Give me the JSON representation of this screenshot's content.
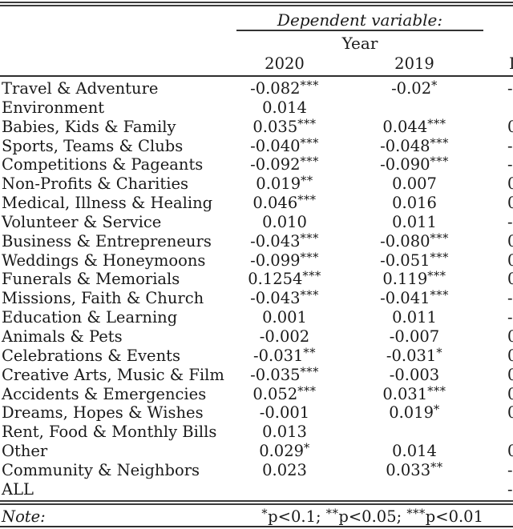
{
  "table": {
    "dependent_variable_label": "Dependent variable:",
    "group_header": "Year",
    "columns": [
      "2020",
      "2019"
    ],
    "clipped_column_header_partial": "I",
    "rows": [
      {
        "label": "Travel & Adventure",
        "y2020": "-0.082***",
        "y2019": "-0.02*",
        "clipped": "-"
      },
      {
        "label": "Environment",
        "y2020": "0.014",
        "y2019": "",
        "clipped": ""
      },
      {
        "label": "Babies, Kids & Family",
        "y2020": "0.035***",
        "y2019": "0.044***",
        "clipped": "0"
      },
      {
        "label": "Sports, Teams & Clubs",
        "y2020": "-0.040***",
        "y2019": "-0.048***",
        "clipped": "-"
      },
      {
        "label": "Competitions & Pageants",
        "y2020": "-0.092***",
        "y2019": "-0.090***",
        "clipped": "-"
      },
      {
        "label": "Non-Profits & Charities",
        "y2020": "0.019**",
        "y2019": "0.007",
        "clipped": "0"
      },
      {
        "label": "Medical, Illness & Healing",
        "y2020": "0.046***",
        "y2019": "0.016",
        "clipped": "0"
      },
      {
        "label": "Volunteer & Service",
        "y2020": "0.010",
        "y2019": "0.011",
        "clipped": "-"
      },
      {
        "label": "Business & Entrepreneurs",
        "y2020": "-0.043***",
        "y2019": "-0.080***",
        "clipped": "0"
      },
      {
        "label": "Weddings & Honeymoons",
        "y2020": "-0.099***",
        "y2019": "-0.051***",
        "clipped": "0"
      },
      {
        "label": "Funerals & Memorials",
        "y2020": "0.1254***",
        "y2019": "0.119***",
        "clipped": "0"
      },
      {
        "label": "Missions, Faith & Church",
        "y2020": "-0.043***",
        "y2019": "-0.041***",
        "clipped": "-"
      },
      {
        "label": "Education & Learning",
        "y2020": "0.001",
        "y2019": "0.011",
        "clipped": "-"
      },
      {
        "label": "Animals & Pets",
        "y2020": "-0.002",
        "y2019": "-0.007",
        "clipped": "0"
      },
      {
        "label": "Celebrations & Events",
        "y2020": "-0.031**",
        "y2019": "-0.031*",
        "clipped": "0"
      },
      {
        "label": "Creative Arts, Music & Film",
        "y2020": "-0.035***",
        "y2019": "-0.003",
        "clipped": "0"
      },
      {
        "label": "Accidents & Emergencies",
        "y2020": "0.052***",
        "y2019": "0.031***",
        "clipped": "0"
      },
      {
        "label": "Dreams, Hopes & Wishes",
        "y2020": "-0.001",
        "y2019": "0.019*",
        "clipped": "0"
      },
      {
        "label": "Rent, Food & Monthly Bills",
        "y2020": "0.013",
        "y2019": "",
        "clipped": ""
      },
      {
        "label": "Other",
        "y2020": "0.029*",
        "y2019": "0.014",
        "clipped": "0"
      },
      {
        "label": "Community & Neighbors",
        "y2020": "0.023",
        "y2019": "0.033**",
        "clipped": "-"
      },
      {
        "label": "ALL",
        "y2020": "",
        "y2019": "",
        "clipped": "-"
      }
    ],
    "note_label": "Note:",
    "note_text": "*p<0.1; **p<0.05; ***p<0.01"
  },
  "colors": {
    "text": "#1a1a1a",
    "rule": "#3a3a3a",
    "background": "#ffffff"
  }
}
